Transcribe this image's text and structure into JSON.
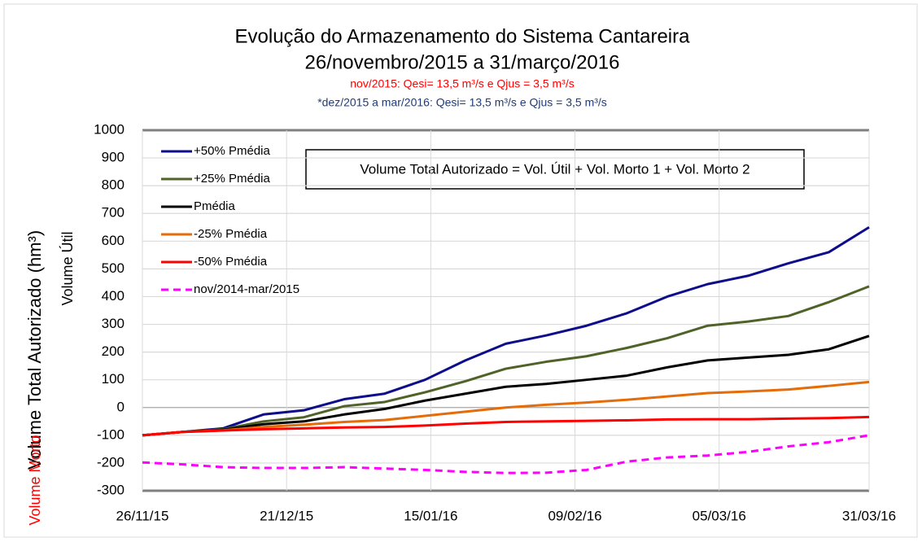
{
  "chart_data": {
    "type": "line",
    "title": "Evolução do Armazenamento do Sistema Cantareira",
    "subtitle": "26/novembro/2015 a 31/março/2016",
    "notes": [
      "nov/2015: Qesi= 13,5 m³/s e Qjus = 3,5 m³/s",
      "*dez/2015 a mar/2016: Qesi= 13,5 m³/s e Qjus = 3,5 m³/s"
    ],
    "y_label": "Volume Total Autorizado (hm³)",
    "y_sublabels": [
      "Volume Útil",
      "Volume Morto"
    ],
    "annotation": "Volume Total Autorizado = Vol. Útil + Vol. Morto 1 + Vol. Morto 2",
    "x": [
      "26/11/15",
      "03/12/15",
      "10/12/15",
      "17/12/15",
      "24/12/15",
      "31/12/15",
      "07/01/16",
      "14/01/16",
      "21/01/16",
      "28/01/16",
      "04/02/16",
      "11/02/16",
      "18/02/16",
      "25/02/16",
      "03/03/16",
      "10/03/16",
      "17/03/16",
      "24/03/16",
      "31/03/16"
    ],
    "xlim": [
      "26/11/15",
      "31/03/16"
    ],
    "xticks": [
      "26/11/15",
      "21/12/15",
      "15/01/16",
      "09/02/16",
      "05/03/16",
      "31/03/16"
    ],
    "ylim": [
      -300,
      1000
    ],
    "yticks": [
      -300,
      -200,
      -100,
      0,
      100,
      200,
      300,
      400,
      500,
      600,
      700,
      800,
      900,
      1000
    ],
    "grid": true,
    "legend": "top-left",
    "series": [
      {
        "name": "+50% Pmédia",
        "color": "#0d0d8c",
        "dash": false,
        "values": [
          -100,
          -88,
          -75,
          -25,
          -10,
          30,
          50,
          100,
          170,
          230,
          260,
          295,
          340,
          400,
          445,
          475,
          520,
          560,
          650
        ]
      },
      {
        "name": "+25% Pmédia",
        "color": "#4f6228",
        "dash": false,
        "values": [
          -100,
          -88,
          -78,
          -50,
          -35,
          5,
          20,
          55,
          95,
          140,
          165,
          185,
          215,
          250,
          295,
          310,
          330,
          380,
          437
        ]
      },
      {
        "name": "Pmédia",
        "color": "#000000",
        "dash": false,
        "values": [
          -100,
          -88,
          -80,
          -60,
          -50,
          -25,
          -5,
          25,
          50,
          75,
          85,
          100,
          115,
          145,
          170,
          180,
          190,
          210,
          258
        ]
      },
      {
        "name": "-25% Pmédia",
        "color": "#e46c0a",
        "dash": false,
        "values": [
          -100,
          -88,
          -82,
          -70,
          -62,
          -52,
          -45,
          -30,
          -15,
          0,
          10,
          18,
          28,
          40,
          52,
          58,
          65,
          78,
          92
        ]
      },
      {
        "name": "-50% Pmédia",
        "color": "#ff0000",
        "dash": false,
        "values": [
          -100,
          -88,
          -83,
          -78,
          -75,
          -72,
          -70,
          -65,
          -58,
          -52,
          -50,
          -48,
          -46,
          -43,
          -42,
          -42,
          -40,
          -38,
          -34
        ]
      },
      {
        "name": "nov/2014-mar/2015",
        "color": "#ff00ff",
        "dash": true,
        "values": [
          -198,
          -205,
          -215,
          -218,
          -218,
          -215,
          -220,
          -225,
          -232,
          -236,
          -235,
          -225,
          -195,
          -180,
          -173,
          -160,
          -140,
          -125,
          -100
        ]
      }
    ]
  }
}
